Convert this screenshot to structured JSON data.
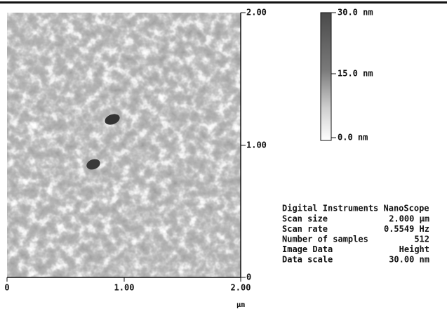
{
  "image_axes": {
    "y_ticks": [
      "2.00",
      "1.00",
      "0"
    ],
    "x_ticks": [
      "0",
      "1.00",
      "2.00"
    ],
    "x_unit": "μm"
  },
  "color_scale": {
    "labels": [
      "30.0 nm",
      "15.0 nm",
      "0.0 nm"
    ]
  },
  "info": {
    "title": "Digital Instruments NanoScope",
    "rows": [
      [
        "Scan size",
        "2.000 μm"
      ],
      [
        "Scan rate",
        "0.5549 Hz"
      ],
      [
        "Number of samples",
        "512"
      ],
      [
        "Image Data",
        "Height"
      ],
      [
        "Data scale",
        "30.00 nm"
      ]
    ]
  }
}
